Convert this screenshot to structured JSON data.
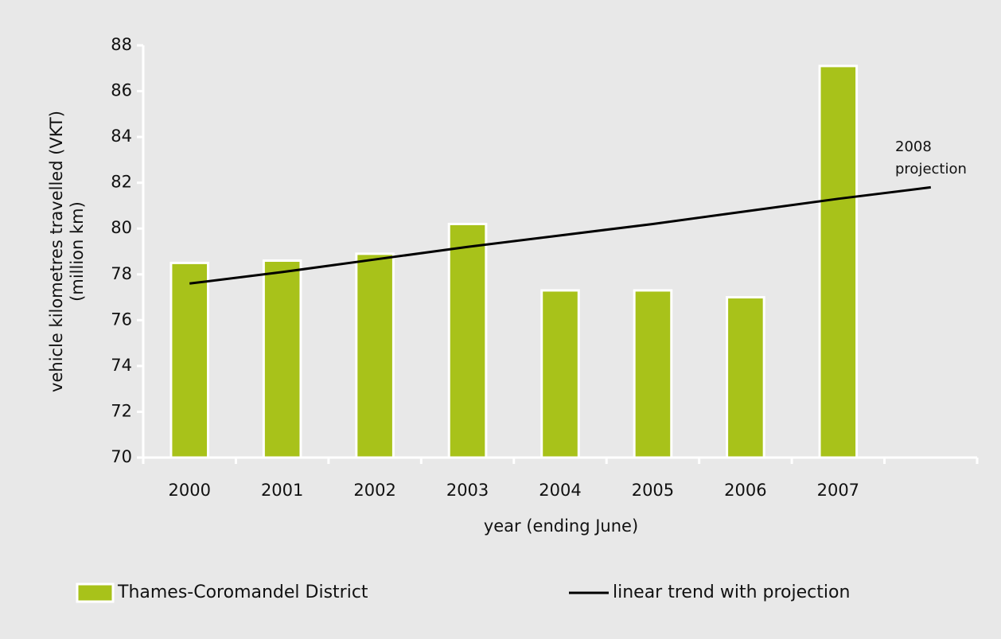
{
  "chart_data": {
    "type": "bar",
    "categories": [
      "2000",
      "2001",
      "2002",
      "2003",
      "2004",
      "2005",
      "2006",
      "2007",
      null
    ],
    "series": [
      {
        "name": "Thames-Coromandel District",
        "type": "bar",
        "color": "#a8c21a",
        "values": [
          78.5,
          78.6,
          78.9,
          80.2,
          77.3,
          77.3,
          77.0,
          87.1,
          null
        ]
      },
      {
        "name": "linear trend with projection",
        "type": "line",
        "color": "#000000",
        "values": [
          77.6,
          78.1,
          78.65,
          79.2,
          79.7,
          80.2,
          80.75,
          81.3,
          81.8
        ]
      }
    ],
    "ylim": [
      70,
      88
    ],
    "yticks": [
      70,
      72,
      74,
      76,
      78,
      80,
      82,
      84,
      86,
      88
    ],
    "ylabel": [
      "vehicle kilometres travelled (VKT)",
      "(million km)"
    ],
    "xlabel": "year (ending June)",
    "annotation": [
      "2008",
      "projection"
    ],
    "legend": "bottom"
  }
}
